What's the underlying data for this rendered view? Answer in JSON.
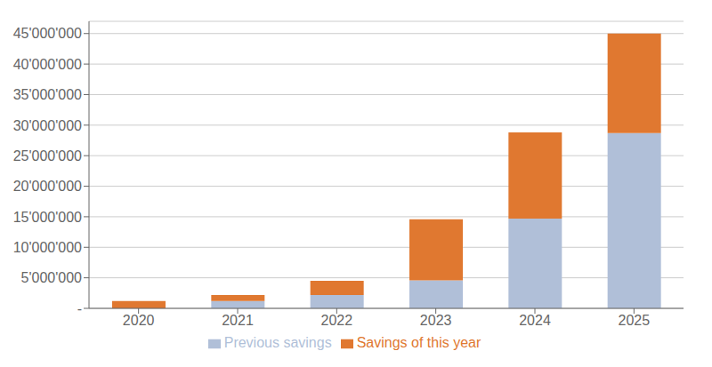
{
  "chart_data": {
    "type": "bar",
    "stacked": true,
    "categories": [
      "2020",
      "2021",
      "2022",
      "2023",
      "2024",
      "2025"
    ],
    "series": [
      {
        "name": "Previous savings",
        "color": "#b0bfd8",
        "values": [
          0,
          1200000,
          2200000,
          4600000,
          14700000,
          28700000
        ]
      },
      {
        "name": "Savings of this year",
        "color": "#e07830",
        "values": [
          1200000,
          1000000,
          2300000,
          10000000,
          14100000,
          16300000
        ]
      }
    ],
    "ylim": [
      0,
      47000000
    ],
    "yticks": [
      {
        "value": 0,
        "label": "-"
      },
      {
        "value": 5000000,
        "label": "5'000'000"
      },
      {
        "value": 10000000,
        "label": "10'000'000"
      },
      {
        "value": 15000000,
        "label": "15'000'000"
      },
      {
        "value": 20000000,
        "label": "20'000'000"
      },
      {
        "value": 25000000,
        "label": "25'000'000"
      },
      {
        "value": 30000000,
        "label": "30'000'000"
      },
      {
        "value": 35000000,
        "label": "35'000'000"
      },
      {
        "value": 40000000,
        "label": "40'000'000"
      },
      {
        "value": 45000000,
        "label": "45'000'000"
      }
    ],
    "grid": true,
    "legend": "bottom"
  }
}
